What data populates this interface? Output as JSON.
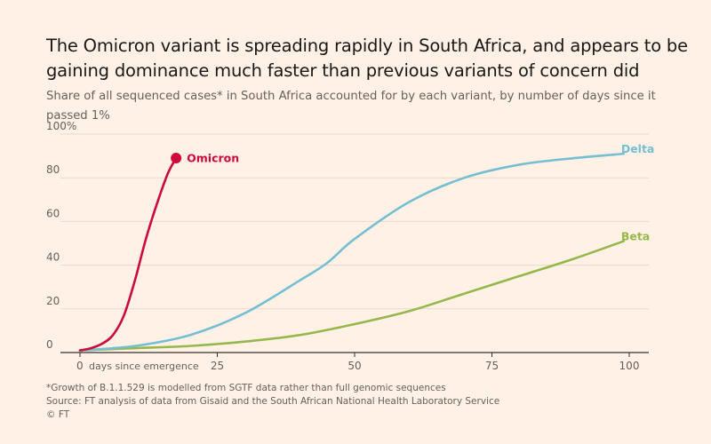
{
  "chart_data": {
    "type": "line",
    "title": "The Omicron variant is spreading rapidly in South Africa, and appears to be gaining dominance much faster than previous variants of concern did",
    "subtitle": "Share of all sequenced cases* in South Africa accounted for by each variant, by number of days since it passed 1%",
    "xlim": [
      0,
      100
    ],
    "ylim": [
      0,
      100
    ],
    "x_ticks": [
      0,
      25,
      50,
      75,
      100
    ],
    "x_tick_labels": [
      "0",
      "25",
      "50",
      "75",
      "100"
    ],
    "x_first_tick_suffix": "days since emergence",
    "y_ticks": [
      0,
      20,
      40,
      60,
      80,
      100
    ],
    "y_tick_labels": [
      "0",
      "20",
      "40",
      "60",
      "80",
      "100%"
    ],
    "grid": "horizontal",
    "series": [
      {
        "name": "Omicron",
        "color": "#cc0a3b",
        "end_marker": true,
        "x": [
          0,
          2,
          4,
          6,
          8,
          10,
          12,
          14,
          16,
          17.5
        ],
        "y": [
          1,
          2,
          4,
          8,
          17,
          33,
          52,
          68,
          82,
          89
        ]
      },
      {
        "name": "Delta",
        "color": "#76bfd2",
        "end_marker": false,
        "x": [
          0,
          10,
          20,
          30,
          40,
          45,
          50,
          60,
          70,
          80,
          90,
          99
        ],
        "y": [
          1,
          3,
          8,
          18,
          33,
          41,
          52,
          69,
          80,
          86,
          89,
          91
        ]
      },
      {
        "name": "Beta",
        "color": "#96b84b",
        "end_marker": false,
        "x": [
          0,
          10,
          20,
          30,
          40,
          50,
          60,
          70,
          80,
          90,
          99
        ],
        "y": [
          1,
          2,
          3,
          5,
          8,
          13,
          19,
          27,
          35,
          43,
          51
        ]
      }
    ]
  },
  "footnotes": [
    "*Growth of B.1.1.529 is modelled from SGTF data rather than full genomic sequences",
    "Source: FT analysis of data from Gisaid and the South African National Health Laboratory Service",
    "© FT"
  ],
  "colors": {
    "background": "#fff1e5",
    "grid": "#e6d9ce",
    "axis": "#33302e"
  }
}
